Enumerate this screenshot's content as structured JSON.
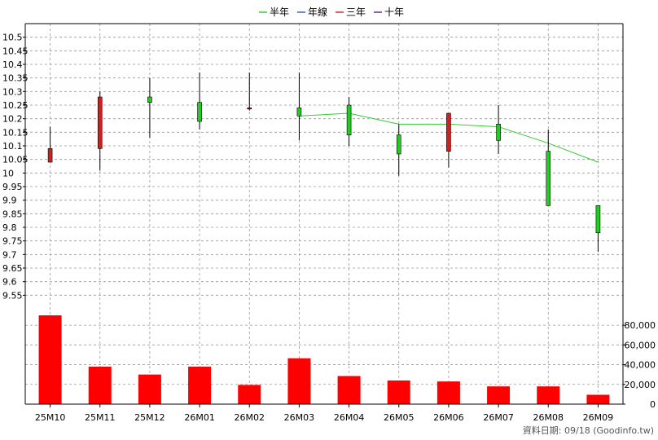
{
  "legend": [
    {
      "label": "半年",
      "color": "#33cc33"
    },
    {
      "label": "年線",
      "color": "#3366cc"
    },
    {
      "label": "三年",
      "color": "#cc3333"
    },
    {
      "label": "十年",
      "color": "#663399"
    }
  ],
  "footer": "資料日期: 09/18  (Goodinfo.tw)",
  "colors": {
    "up": "#cc2222",
    "down": "#22cc22",
    "volume": "#ff0000",
    "half_year_line": "#33cc33",
    "grid": "#999999"
  },
  "chart_data": [
    {
      "type": "candlestick",
      "categories": [
        "25M10",
        "25M11",
        "25M12",
        "26M01",
        "26M02",
        "26M03",
        "26M04",
        "26M05",
        "26M06",
        "26M07",
        "26M08",
        "26M09"
      ],
      "ohlc": [
        {
          "open": 10.04,
          "high": 10.17,
          "low": 10.04,
          "close": 10.09
        },
        {
          "open": 10.09,
          "high": 10.3,
          "low": 10.01,
          "close": 10.28
        },
        {
          "open": 10.28,
          "high": 10.35,
          "low": 10.13,
          "close": 10.26
        },
        {
          "open": 10.26,
          "high": 10.37,
          "low": 10.16,
          "close": 10.19
        },
        {
          "open": 10.24,
          "high": 10.37,
          "low": 10.23,
          "close": 10.24
        },
        {
          "open": 10.24,
          "high": 10.37,
          "low": 10.12,
          "close": 10.21
        },
        {
          "open": 10.25,
          "high": 10.28,
          "low": 10.1,
          "close": 10.14
        },
        {
          "open": 10.14,
          "high": 10.18,
          "low": 9.99,
          "close": 10.07
        },
        {
          "open": 10.08,
          "high": 10.22,
          "low": 10.02,
          "close": 10.22
        },
        {
          "open": 10.18,
          "high": 10.25,
          "low": 10.07,
          "close": 10.12
        },
        {
          "open": 10.08,
          "high": 10.16,
          "low": 9.88,
          "close": 9.88
        },
        {
          "open": 9.88,
          "high": 9.88,
          "low": 9.71,
          "close": 9.78
        }
      ],
      "half_year_line": [
        null,
        null,
        null,
        null,
        null,
        10.21,
        10.22,
        10.18,
        10.18,
        10.17,
        10.11,
        10.04
      ],
      "ylim": [
        9.5,
        10.55
      ],
      "yticks": [
        9.55,
        9.6,
        9.65,
        9.7,
        9.75,
        9.8,
        9.85,
        9.9,
        9.95,
        10,
        10.05,
        10.1,
        10.15,
        10.2,
        10.25,
        10.3,
        10.35,
        10.4,
        10.45,
        10.5
      ],
      "grid": true,
      "legend_position": "top-center"
    },
    {
      "type": "bar",
      "categories": [
        "25M10",
        "25M11",
        "25M12",
        "26M01",
        "26M02",
        "26M03",
        "26M04",
        "26M05",
        "26M06",
        "26M07",
        "26M08",
        "26M09"
      ],
      "values": [
        90000,
        38000,
        30000,
        38000,
        19500,
        46500,
        28500,
        24000,
        23000,
        18000,
        18000,
        9500
      ],
      "ylim": [
        0,
        90000
      ],
      "yticks": [
        0,
        20000,
        40000,
        60000,
        80000
      ],
      "ytick_labels": [
        "0",
        "20,000",
        "40,000",
        "60,000",
        "80,000"
      ],
      "grid": true
    }
  ]
}
